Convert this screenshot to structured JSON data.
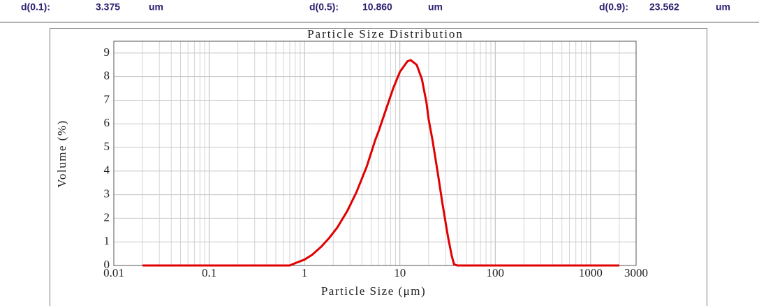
{
  "header": {
    "items": [
      {
        "label": "d(0.1):",
        "value": "3.375",
        "unit": "um"
      },
      {
        "label": "d(0.5):",
        "value": "10.860",
        "unit": "um"
      },
      {
        "label": "d(0.9):",
        "value": "23.562",
        "unit": "um"
      }
    ]
  },
  "chart_data": {
    "type": "line",
    "title": "Particle Size Distribution",
    "x_label": "Particle Size (μm)",
    "y_label": "Volume (%)",
    "x_scale": "log",
    "grid": true,
    "minor_grid": true,
    "xlim": [
      0.01,
      3000
    ],
    "xticks": [
      0.01,
      0.1,
      1,
      10,
      100,
      1000,
      3000
    ],
    "ylim": [
      0,
      9.5
    ],
    "yticks": [
      0,
      1,
      2,
      3,
      4,
      5,
      6,
      7,
      8,
      9
    ],
    "x": [
      0.02,
      0.7,
      0.8,
      1,
      1.2,
      1.5,
      1.8,
      2.2,
      2.8,
      3.5,
      4.5,
      5.5,
      6,
      7,
      8.5,
      10,
      12,
      13,
      15,
      17,
      19,
      20,
      22,
      25,
      28,
      32,
      35,
      37,
      40,
      100,
      2000
    ],
    "series": [
      {
        "name": "Volume",
        "color": "#e00000",
        "values": [
          0,
          0,
          0.1,
          0.25,
          0.45,
          0.8,
          1.15,
          1.6,
          2.3,
          3.1,
          4.2,
          5.3,
          5.7,
          6.5,
          7.5,
          8.2,
          8.65,
          8.7,
          8.5,
          7.9,
          6.9,
          6.2,
          5.3,
          3.9,
          2.6,
          1.2,
          0.4,
          0.05,
          0,
          0,
          0
        ]
      }
    ]
  }
}
